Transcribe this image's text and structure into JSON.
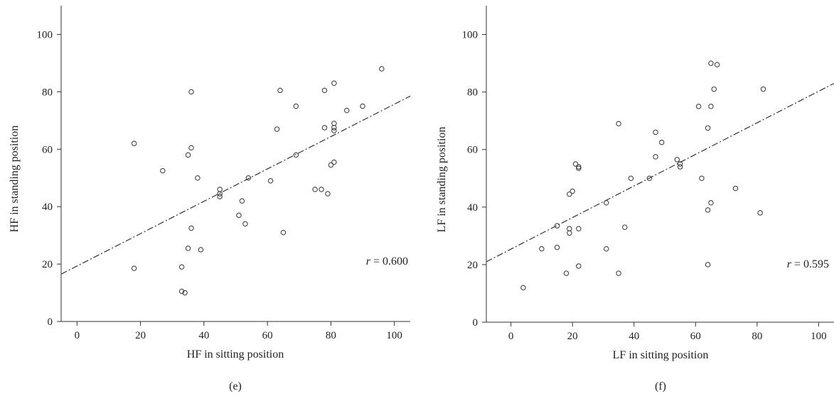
{
  "chart_data": [
    {
      "type": "scatter",
      "panel_label": "(e)",
      "xlabel": "HF in sitting position",
      "ylabel": "HF in standing position",
      "xlim": [
        -5,
        105
      ],
      "ylim": [
        0,
        110
      ],
      "xticks": [
        "0",
        "20",
        "40",
        "60",
        "80",
        "100"
      ],
      "yticks": [
        "0",
        "20",
        "40",
        "60",
        "80",
        "100"
      ],
      "grid": false,
      "annotation": {
        "prefix": "r",
        "text": " = 0.600"
      },
      "fit_line": {
        "x": [
          -5,
          105
        ],
        "y": [
          16.5,
          78.5
        ]
      },
      "points": [
        [
          18,
          62
        ],
        [
          18,
          18.5
        ],
        [
          27,
          52.5
        ],
        [
          33,
          19
        ],
        [
          33,
          10.5
        ],
        [
          34,
          10
        ],
        [
          35,
          58
        ],
        [
          35,
          25.5
        ],
        [
          36,
          80
        ],
        [
          36,
          60.5
        ],
        [
          36,
          32.5
        ],
        [
          38,
          50
        ],
        [
          39,
          25
        ],
        [
          45,
          46
        ],
        [
          45,
          44.5
        ],
        [
          45,
          43.5
        ],
        [
          51,
          37
        ],
        [
          52,
          42
        ],
        [
          53,
          34
        ],
        [
          54,
          50
        ],
        [
          61,
          49
        ],
        [
          63,
          67
        ],
        [
          64,
          80.5
        ],
        [
          65,
          31
        ],
        [
          69,
          75
        ],
        [
          69,
          58
        ],
        [
          75,
          46
        ],
        [
          77,
          46
        ],
        [
          78,
          80.5
        ],
        [
          78,
          67.5
        ],
        [
          79,
          44.5
        ],
        [
          80,
          54.5
        ],
        [
          81,
          83
        ],
        [
          81,
          55.5
        ],
        [
          81,
          69
        ],
        [
          81,
          67.5
        ],
        [
          81,
          66.5
        ],
        [
          85,
          73.5
        ],
        [
          90,
          75
        ],
        [
          96,
          88
        ]
      ]
    },
    {
      "type": "scatter",
      "panel_label": "(f)",
      "xlabel": "LF in sitting position",
      "ylabel": "LF in standing position",
      "xlim": [
        -8,
        105
      ],
      "ylim": [
        0,
        110
      ],
      "xticks": [
        "0",
        "20",
        "40",
        "60",
        "80",
        "100"
      ],
      "yticks": [
        "0",
        "20",
        "40",
        "60",
        "80",
        "100"
      ],
      "grid": false,
      "annotation": {
        "prefix": "r",
        "text": " = 0.595"
      },
      "fit_line": {
        "x": [
          -8,
          105
        ],
        "y": [
          21,
          83
        ]
      },
      "points": [
        [
          4,
          12
        ],
        [
          10,
          25.5
        ],
        [
          15,
          33.5
        ],
        [
          15,
          26
        ],
        [
          18,
          17
        ],
        [
          19,
          44.5
        ],
        [
          19,
          31
        ],
        [
          19,
          32.5
        ],
        [
          20,
          45.5
        ],
        [
          21,
          55
        ],
        [
          22,
          53.5
        ],
        [
          22,
          54
        ],
        [
          22,
          32.5
        ],
        [
          22,
          19.5
        ],
        [
          31,
          41.5
        ],
        [
          31,
          25.5
        ],
        [
          35,
          69
        ],
        [
          35,
          17
        ],
        [
          37,
          33
        ],
        [
          39,
          50
        ],
        [
          45,
          50
        ],
        [
          47,
          66
        ],
        [
          47,
          57.5
        ],
        [
          49,
          62.5
        ],
        [
          54,
          56.5
        ],
        [
          55,
          55
        ],
        [
          55,
          54
        ],
        [
          61,
          75
        ],
        [
          62,
          50
        ],
        [
          64,
          67.5
        ],
        [
          64,
          39
        ],
        [
          64,
          20
        ],
        [
          65,
          75
        ],
        [
          65,
          41.5
        ],
        [
          65,
          90
        ],
        [
          66,
          81
        ],
        [
          67,
          89.5
        ],
        [
          73,
          46.5
        ],
        [
          81,
          38
        ],
        [
          82,
          81
        ]
      ]
    }
  ]
}
